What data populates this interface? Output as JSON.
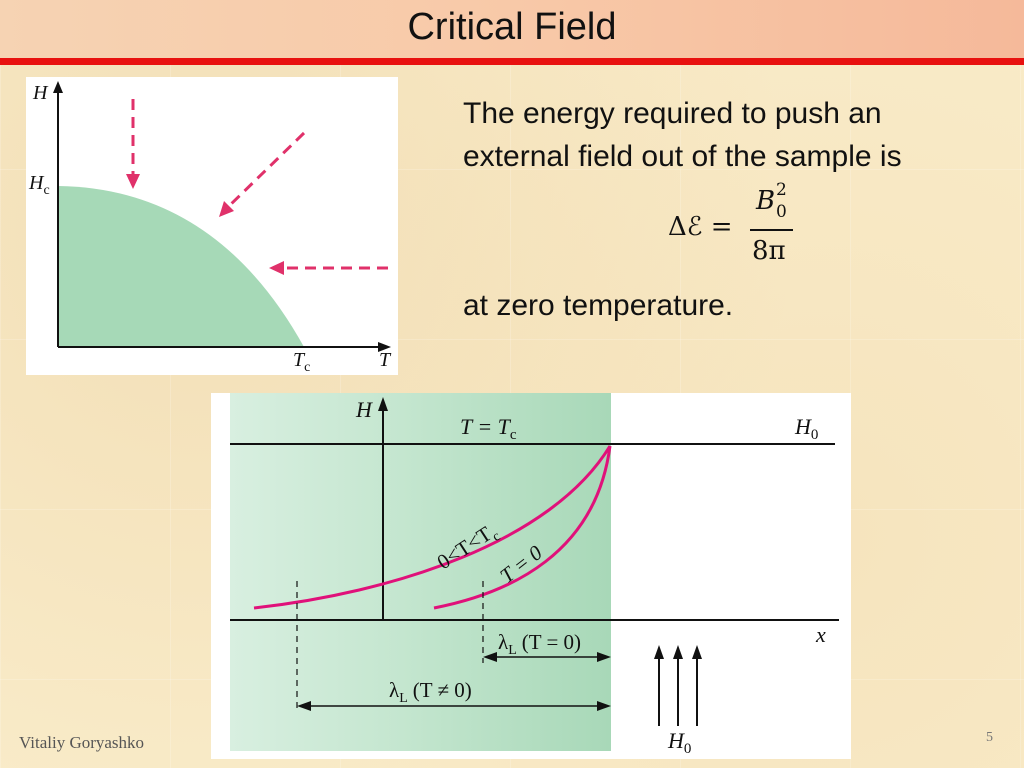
{
  "slide": {
    "title": "Critical Field",
    "text_line1": "The energy required to push an",
    "text_line2": "external field out of the sample is",
    "text_line3": "at zero temperature.",
    "formula": {
      "lhs": "ΔℰE =",
      "numerator": "B",
      "numerator_superscript": "2",
      "numerator_subscript": "0",
      "denominator": "8π"
    },
    "footer_author": "Vitaliy Goryashko",
    "page_number": "5"
  },
  "phase_diagram": {
    "y_axis_label": "H",
    "critical_field_label": "H",
    "critical_field_subscript": "c",
    "critical_temp_label": "T",
    "critical_temp_subscript": "c",
    "x_axis_label": "T",
    "superconducting_region_color": "#a6d9b7",
    "arrow_color": "#e0316a"
  },
  "penetration_diagram": {
    "y_axis_label": "H",
    "x_axis_label": "x",
    "top_label": "T = T",
    "top_label_subscript": "c",
    "applied_field_label": "H",
    "applied_field_subscript": "0",
    "curve_label_finite_t": "0<T<T",
    "curve_label_finite_t_subscript": "c",
    "curve_label_zero_t": "T = 0",
    "lambda_zero_label": "λ",
    "lambda_zero_subscript": "L",
    "lambda_zero_condition": "(T = 0)",
    "lambda_finite_label": "λ",
    "lambda_finite_subscript": "L",
    "lambda_finite_condition": "(T ≠ 0)",
    "bottom_field_label": "H",
    "bottom_field_subscript": "0",
    "sample_fill_color": "#a8d8b8",
    "curve_color": "#e0117a"
  }
}
